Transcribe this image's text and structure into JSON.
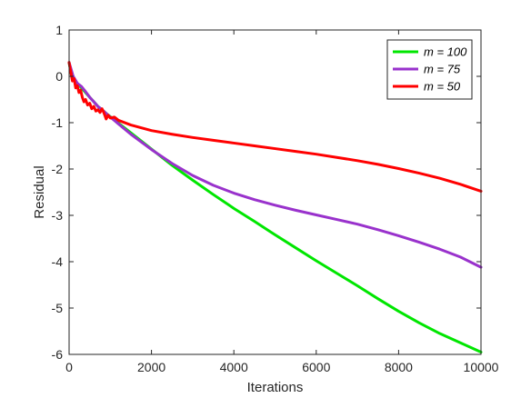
{
  "chart_data": {
    "type": "line",
    "title": "",
    "xlabel": "Iterations",
    "ylabel": "Residual",
    "xlim": [
      0,
      10000
    ],
    "ylim": [
      -6,
      1
    ],
    "xticks": [
      0,
      2000,
      4000,
      6000,
      8000,
      10000
    ],
    "yticks": [
      1,
      0,
      -1,
      -2,
      -3,
      -4,
      -5,
      -6
    ],
    "grid": false,
    "legend_position": "top-right",
    "series": [
      {
        "name": "m = 100",
        "color": "#00e600",
        "x": [
          0,
          50,
          100,
          200,
          300,
          400,
          500,
          600,
          700,
          800,
          900,
          1000,
          1500,
          2000,
          2500,
          3000,
          3500,
          4000,
          4500,
          5000,
          5500,
          6000,
          6500,
          7000,
          7500,
          8000,
          8500,
          9000,
          9500,
          10000
        ],
        "y": [
          0.3,
          0.05,
          -0.05,
          -0.15,
          -0.25,
          -0.35,
          -0.45,
          -0.55,
          -0.65,
          -0.72,
          -0.8,
          -0.87,
          -1.22,
          -1.57,
          -1.92,
          -2.24,
          -2.55,
          -2.85,
          -3.13,
          -3.42,
          -3.7,
          -3.98,
          -4.25,
          -4.52,
          -4.8,
          -5.07,
          -5.32,
          -5.55,
          -5.75,
          -5.95
        ]
      },
      {
        "name": "m = 75",
        "color": "#9932cc",
        "x": [
          0,
          100,
          200,
          300,
          400,
          500,
          600,
          700,
          800,
          1000,
          1500,
          2000,
          2500,
          3000,
          3500,
          4000,
          4500,
          5000,
          5500,
          6000,
          6500,
          7000,
          7500,
          8000,
          8500,
          9000,
          9500,
          10000
        ],
        "y": [
          0.3,
          0.0,
          -0.15,
          -0.22,
          -0.33,
          -0.45,
          -0.55,
          -0.65,
          -0.72,
          -0.88,
          -1.25,
          -1.58,
          -1.88,
          -2.14,
          -2.35,
          -2.52,
          -2.66,
          -2.78,
          -2.89,
          -2.99,
          -3.09,
          -3.19,
          -3.31,
          -3.44,
          -3.58,
          -3.73,
          -3.9,
          -4.12
        ]
      },
      {
        "name": "m = 50",
        "color": "#ff0000",
        "x": [
          0,
          40,
          80,
          120,
          160,
          200,
          240,
          280,
          320,
          360,
          400,
          450,
          500,
          550,
          600,
          650,
          700,
          750,
          800,
          850,
          900,
          950,
          1000,
          1100,
          1200,
          1500,
          2000,
          2500,
          3000,
          3500,
          4000,
          4500,
          5000,
          5500,
          6000,
          6500,
          7000,
          7500,
          8000,
          8500,
          9000,
          9500,
          10000
        ],
        "y": [
          0.3,
          0.1,
          -0.1,
          -0.05,
          -0.25,
          -0.2,
          -0.35,
          -0.3,
          -0.45,
          -0.55,
          -0.5,
          -0.62,
          -0.58,
          -0.7,
          -0.65,
          -0.75,
          -0.72,
          -0.78,
          -0.7,
          -0.8,
          -0.92,
          -0.84,
          -0.9,
          -0.88,
          -0.95,
          -1.05,
          -1.17,
          -1.25,
          -1.32,
          -1.38,
          -1.44,
          -1.5,
          -1.56,
          -1.62,
          -1.68,
          -1.75,
          -1.82,
          -1.9,
          -1.99,
          -2.09,
          -2.2,
          -2.33,
          -2.48
        ]
      }
    ]
  }
}
